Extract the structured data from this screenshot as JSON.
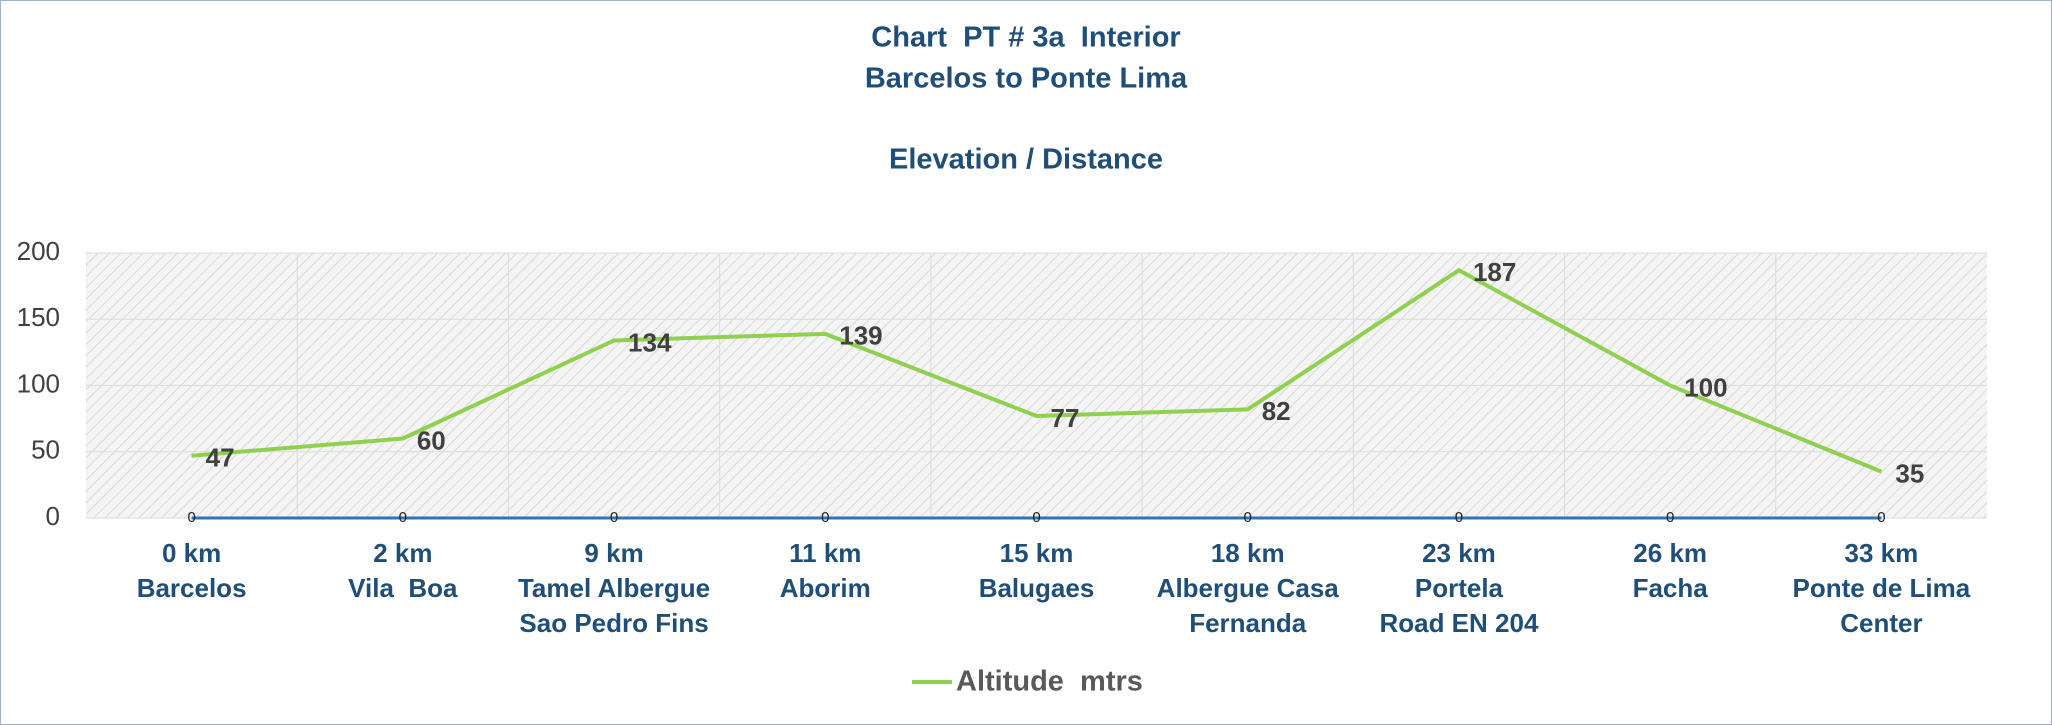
{
  "chart_data": {
    "type": "line",
    "title": [
      "Chart  PT # 3a  Interior",
      "Barcelos to Ponte Lima"
    ],
    "subtitle": "Elevation / Distance",
    "categories": [
      [
        "0 km",
        "Barcelos"
      ],
      [
        "2 km",
        "Vila  Boa"
      ],
      [
        "9 km",
        "Tamel Albergue",
        "Sao Pedro Fins"
      ],
      [
        "11 km",
        "Aborim"
      ],
      [
        "15 km",
        "Balugaes"
      ],
      [
        "18 km",
        "Albergue Casa",
        "Fernanda"
      ],
      [
        "23 km",
        "Portela",
        "Road EN 204"
      ],
      [
        "26 km",
        "Facha"
      ],
      [
        "33 km",
        "Ponte de Lima",
        "Center"
      ]
    ],
    "series": [
      {
        "name": "Altitude  mtrs",
        "color": "#8fd14f",
        "values": [
          47,
          60,
          134,
          139,
          77,
          82,
          187,
          100,
          35
        ]
      },
      {
        "color": "#2e75b6",
        "values": [
          0,
          0,
          0,
          0,
          0,
          0,
          0,
          0,
          0
        ]
      }
    ],
    "ylim": [
      0,
      200
    ],
    "yticks": [
      0,
      50,
      100,
      150,
      200
    ],
    "grid": true
  }
}
